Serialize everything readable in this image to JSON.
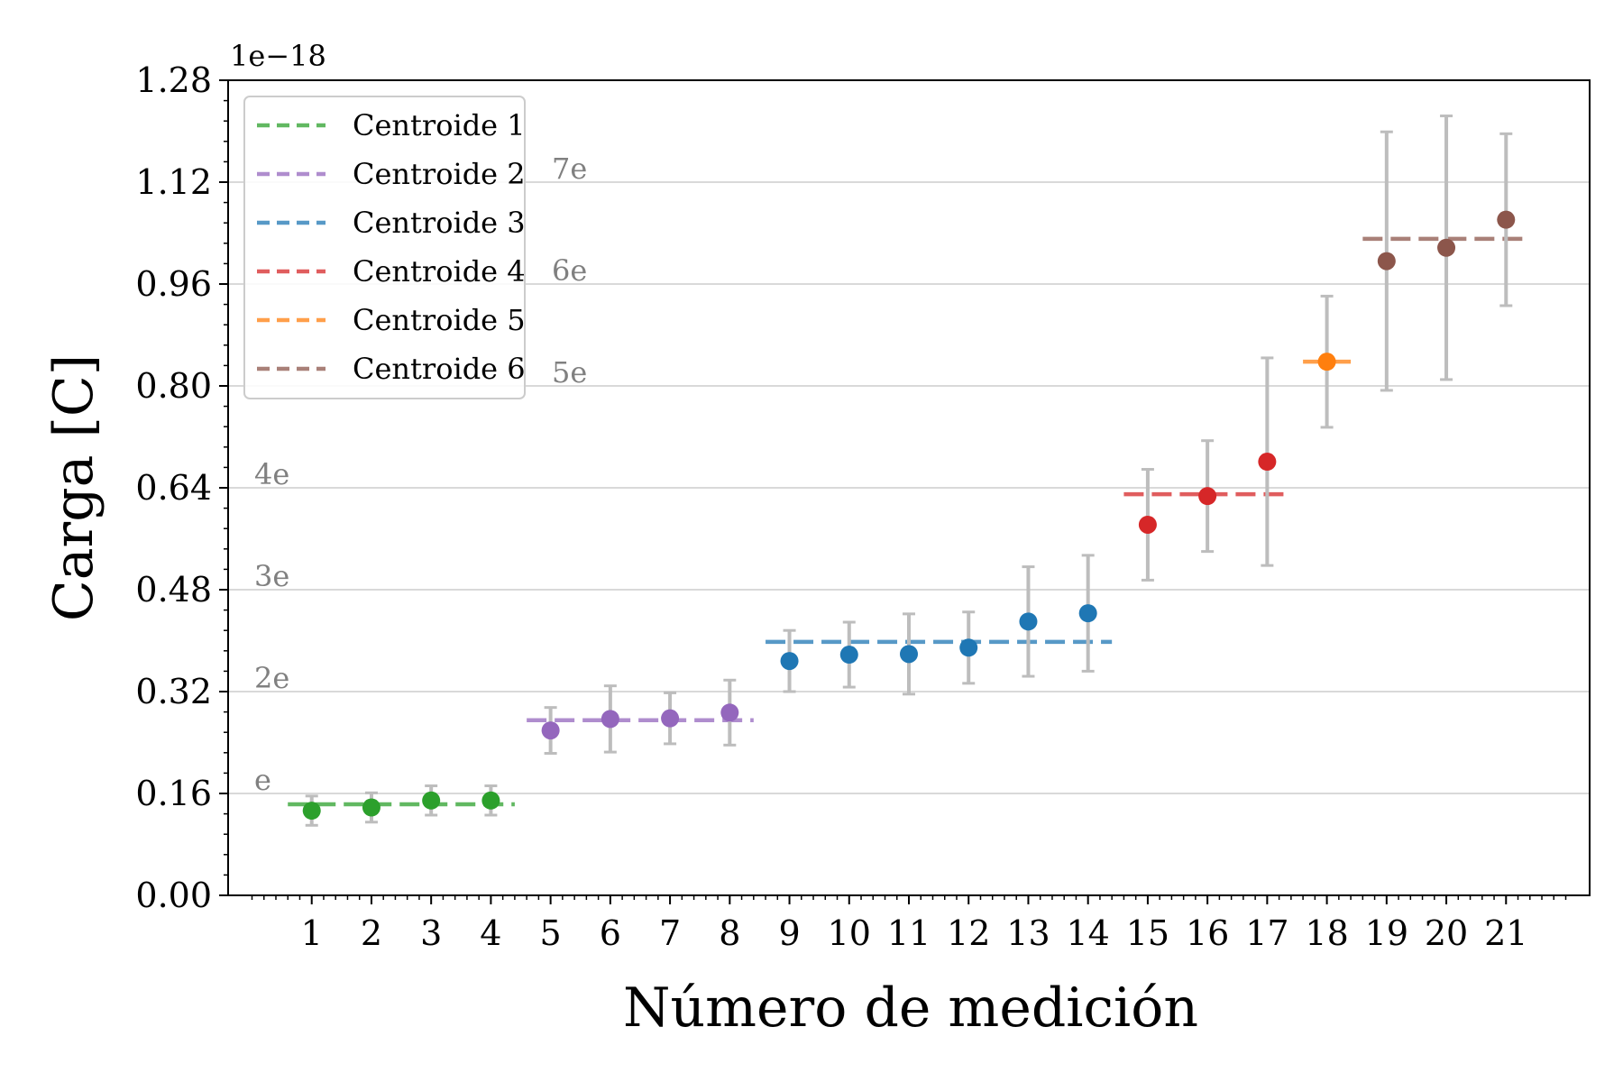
{
  "chart_data": {
    "type": "scatter",
    "title": "",
    "xlabel": "Número de medición",
    "ylabel": "Carga [C]",
    "y_offset_text": "1e−18",
    "ylim": [
      0,
      1.28
    ],
    "xlim": [
      -0.4,
      22.4
    ],
    "yticks": [
      "0.00",
      "0.16",
      "0.32",
      "0.48",
      "0.64",
      "0.80",
      "0.96",
      "1.12",
      "1.28"
    ],
    "xticks": [
      "1",
      "2",
      "3",
      "4",
      "5",
      "6",
      "7",
      "8",
      "9",
      "10",
      "11",
      "12",
      "13",
      "14",
      "15",
      "16",
      "17",
      "18",
      "19",
      "20",
      "21"
    ],
    "grid": "horizontal lines at charge levels",
    "legend_position": "top-left",
    "charge_levels": [
      {
        "label": "e",
        "value": 0.16
      },
      {
        "label": "2e",
        "value": 0.32
      },
      {
        "label": "3e",
        "value": 0.48
      },
      {
        "label": "4e",
        "value": 0.64
      },
      {
        "label": "5e",
        "value": 0.8
      },
      {
        "label": "6e",
        "value": 0.96
      },
      {
        "label": "7e",
        "value": 1.12
      }
    ],
    "points": [
      {
        "x": 1,
        "y": 0.133,
        "err": 0.023,
        "cluster": 0
      },
      {
        "x": 2,
        "y": 0.138,
        "err": 0.023,
        "cluster": 0
      },
      {
        "x": 3,
        "y": 0.149,
        "err": 0.023,
        "cluster": 0
      },
      {
        "x": 4,
        "y": 0.149,
        "err": 0.023,
        "cluster": 0
      },
      {
        "x": 5,
        "y": 0.259,
        "err": 0.036,
        "cluster": 1
      },
      {
        "x": 6,
        "y": 0.277,
        "err": 0.052,
        "cluster": 1
      },
      {
        "x": 7,
        "y": 0.278,
        "err": 0.04,
        "cluster": 1
      },
      {
        "x": 8,
        "y": 0.287,
        "err": 0.051,
        "cluster": 1
      },
      {
        "x": 9,
        "y": 0.368,
        "err": 0.048,
        "cluster": 2
      },
      {
        "x": 10,
        "y": 0.378,
        "err": 0.051,
        "cluster": 2
      },
      {
        "x": 11,
        "y": 0.379,
        "err": 0.063,
        "cluster": 2
      },
      {
        "x": 12,
        "y": 0.389,
        "err": 0.056,
        "cluster": 2
      },
      {
        "x": 13,
        "y": 0.43,
        "err": 0.086,
        "cluster": 2
      },
      {
        "x": 14,
        "y": 0.443,
        "err": 0.091,
        "cluster": 2
      },
      {
        "x": 15,
        "y": 0.582,
        "err": 0.087,
        "cluster": 3
      },
      {
        "x": 16,
        "y": 0.627,
        "err": 0.087,
        "cluster": 3
      },
      {
        "x": 17,
        "y": 0.681,
        "err": 0.163,
        "cluster": 3
      },
      {
        "x": 18,
        "y": 0.838,
        "err": 0.103,
        "cluster": 4
      },
      {
        "x": 19,
        "y": 0.996,
        "err": 0.203,
        "cluster": 5
      },
      {
        "x": 20,
        "y": 1.017,
        "err": 0.207,
        "cluster": 5
      },
      {
        "x": 21,
        "y": 1.061,
        "err": 0.135,
        "cluster": 5
      }
    ],
    "series": [
      {
        "name": "Centroide 1",
        "color": "#2ca02c",
        "centroid": 0.143,
        "x_range": [
          0.6,
          4.4
        ]
      },
      {
        "name": "Centroide 2",
        "color": "#9467bd",
        "centroid": 0.275,
        "x_range": [
          4.6,
          8.4
        ]
      },
      {
        "name": "Centroide 3",
        "color": "#1f77b4",
        "centroid": 0.398,
        "x_range": [
          8.6,
          14.4
        ]
      },
      {
        "name": "Centroide 4",
        "color": "#d62728",
        "centroid": 0.63,
        "x_range": [
          14.6,
          17.4
        ]
      },
      {
        "name": "Centroide 5",
        "color": "#ff7f0e",
        "centroid": 0.838,
        "x_range": [
          17.6,
          18.4
        ]
      },
      {
        "name": "Centroide 6",
        "color": "#8c564b",
        "centroid": 1.031,
        "x_range": [
          18.6,
          21.4
        ]
      }
    ]
  }
}
